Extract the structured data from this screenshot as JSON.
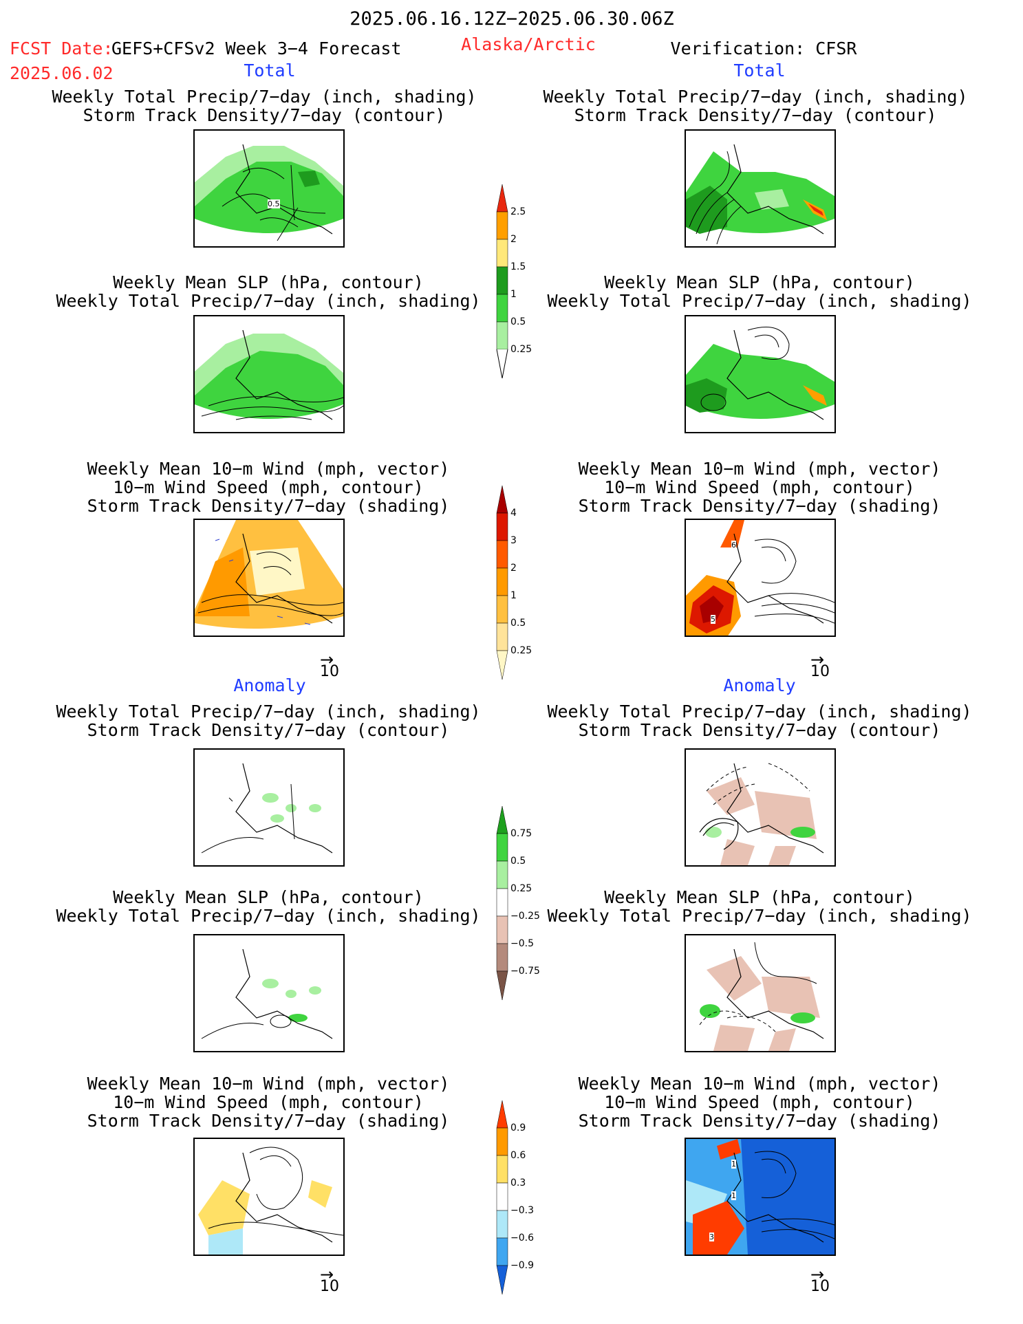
{
  "header": {
    "time_range": "2025.06.16.12Z−2025.06.30.06Z",
    "fcst_date_label": "FCST Date:",
    "fcst_date_value": "2025.06.02",
    "model": "GEFS+CFSv2 Week 3−4 Forecast",
    "region": "Alaska/Arctic",
    "verification": "Verification: CFSR"
  },
  "sections": {
    "total_left": "Total",
    "total_right": "Total",
    "anomaly_left": "Anomaly",
    "anomaly_right": "Anomaly"
  },
  "panel_titles": {
    "precip_storm": [
      "Weekly Total Precip/7−day (inch, shading)",
      "Storm Track Density/7−day (contour)"
    ],
    "slp_precip": [
      "Weekly Mean SLP (hPa, contour)",
      "Weekly Total Precip/7−day (inch, shading)"
    ],
    "wind_storm": [
      "Weekly Mean 10−m Wind (mph, vector)",
      "10−m Wind Speed (mph, contour)",
      "Storm Track Density/7−day (shading)"
    ]
  },
  "map_labels": {
    "r1_left": "0.5",
    "r3_right_a": "6",
    "r3_right_b": "5",
    "r6_right_a": "1",
    "r6_right_b": "1",
    "r6_right_c": "3"
  },
  "vector_reference": "10",
  "colorbars": {
    "precip_total": {
      "labels": [
        "2.5",
        "2",
        "1.5",
        "1",
        "0.5",
        "0.25"
      ],
      "colors": [
        "#e8280f",
        "#ff9f00",
        "#ffe87a",
        "#1e9b1e",
        "#3fd43f",
        "#a8efa0"
      ]
    },
    "storm_total": {
      "labels": [
        "4",
        "3",
        "2",
        "1",
        "0.5",
        "0.25"
      ],
      "colors": [
        "#a80000",
        "#dd1800",
        "#ff5a00",
        "#ff9a00",
        "#ffc040",
        "#ffe39a",
        "#fff7c6"
      ]
    },
    "precip_anom": {
      "labels": [
        "0.75",
        "0.5",
        "0.25",
        "−0.25",
        "−0.5",
        "−0.75"
      ],
      "colors": [
        "#1ea01e",
        "#3fd43f",
        "#a8efa0",
        "#ffffff",
        "#e8c2b4",
        "#b48a7c",
        "#7a5446"
      ]
    },
    "storm_anom": {
      "labels": [
        "0.9",
        "0.6",
        "0.3",
        "−0.3",
        "−0.6",
        "−0.9"
      ],
      "colors": [
        "#ff3c00",
        "#ff9a00",
        "#ffe066",
        "#ffffff",
        "#aee8f8",
        "#3fa6f0",
        "#1560d8"
      ]
    }
  }
}
